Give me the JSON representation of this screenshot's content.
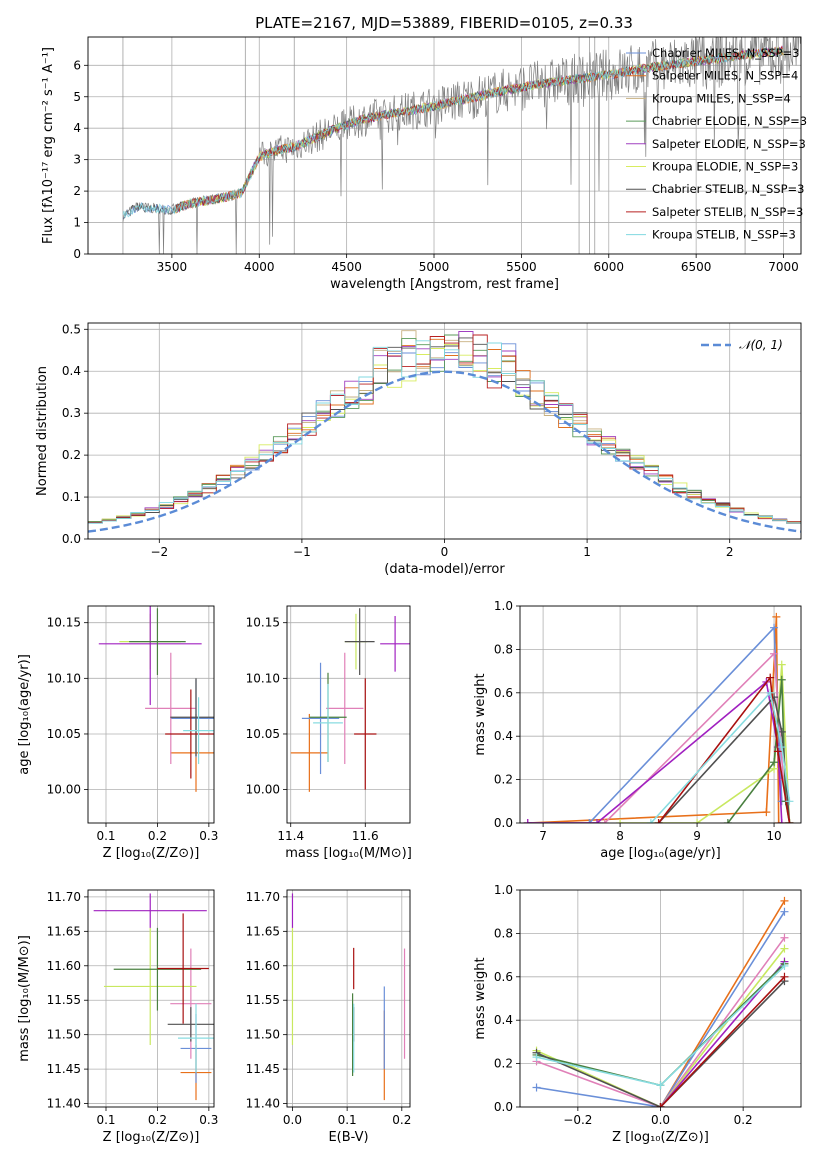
{
  "figure": {
    "title": "PLATE=2167, MJD=53889, FIBERID=0105, z=0.33"
  },
  "colors": {
    "series": [
      "#ff7f0e",
      "#ff7f0e",
      "#b07a2a",
      "#4e8a50",
      "#9b30c8",
      "#c8e05a",
      "#404040",
      "#b01010",
      "#7fdde0"
    ],
    "model": [
      "#6a8fd8",
      "#e07020",
      "#c8b080",
      "#5a9a5a",
      "#a040c0",
      "#d8ec60",
      "#505050",
      "#b82020",
      "#80d8e0"
    ],
    "errbar": [
      "#e8701a",
      "#6a8fd8",
      "#e080b8",
      "#c8e860",
      "#a020c0",
      "#4a8040",
      "#505050",
      "#a81010",
      "#88dce0"
    ],
    "gaussian": "#5b8bd6",
    "spectrum": "#808080"
  },
  "chart_data": [
    {
      "id": "spectrum",
      "type": "line",
      "title": "PLATE=2167, MJD=53889, FIBERID=0105, z=0.33",
      "xlabel": "wavelength [Angstrom, rest frame]",
      "ylabel": "Flux [fλ10⁻¹⁷ erg cm⁻² s⁻¹ A⁻¹]",
      "xlim": [
        3020,
        7100
      ],
      "ylim": [
        0,
        6.9
      ],
      "xticks": [
        3500,
        4000,
        4500,
        5000,
        5500,
        6000,
        6500,
        7000
      ],
      "yticks": [
        0,
        1,
        2,
        3,
        4,
        5,
        6
      ],
      "legend_position": "top-right",
      "legend": [
        "Chabrier MILES, N_SSP=3",
        "Salpeter MILES, N_SSP=4",
        "Kroupa MILES, N_SSP=4",
        "Chabrier ELODIE, N_SSP=3",
        "Salpeter ELODIE, N_SSP=3",
        "Kroupa ELODIE, N_SSP=3",
        "Chabrier STELIB, N_SSP=3",
        "Salpeter STELIB, N_SSP=3",
        "Kroupa STELIB, N_SSP=3"
      ],
      "continuum": {
        "x": [
          3220,
          3300,
          3400,
          3500,
          3600,
          3700,
          3800,
          3900,
          4000,
          4100,
          4200,
          4400,
          4600,
          4800,
          5000,
          5200,
          5400,
          5600,
          5800,
          6000,
          6200,
          6400,
          6600,
          6800,
          7000
        ],
        "y": [
          1.2,
          1.5,
          1.45,
          1.4,
          1.6,
          1.7,
          1.8,
          1.95,
          3.1,
          3.3,
          3.4,
          3.9,
          4.3,
          4.5,
          4.7,
          4.95,
          5.2,
          5.4,
          5.55,
          5.7,
          5.9,
          6.05,
          6.2,
          6.35,
          6.45
        ]
      },
      "model_start": [
        3220,
        3520,
        3520,
        3520,
        3520,
        3520,
        3220,
        3520,
        3220
      ]
    },
    {
      "id": "residuals",
      "type": "line",
      "xlabel": "(data-model)/error",
      "ylabel": "Normed distribution",
      "xlim": [
        -2.5,
        2.5
      ],
      "ylim": [
        0,
        0.515
      ],
      "xticks": [
        -2,
        -1,
        0,
        1,
        2
      ],
      "yticks": [
        0.0,
        0.1,
        0.2,
        0.3,
        0.4,
        0.5
      ],
      "legend_position": "top-right",
      "gaussian_label": "𝒩(0, 1)",
      "gaussian": {
        "mean": 0,
        "sigma": 1
      },
      "bin_width": 0.1
    },
    {
      "id": "age-vs-Z",
      "type": "scatter",
      "xlabel": "Z [log₁₀(Z/Z⊙)]",
      "ylabel": "age  [log₁₀(age/yr)]",
      "xlim": [
        0.065,
        0.31
      ],
      "ylim": [
        9.97,
        10.165
      ],
      "xticks": [
        0.1,
        0.2,
        0.3
      ],
      "yticks": [
        10.0,
        10.05,
        10.1,
        10.15
      ],
      "points": [
        {
          "x": 0.275,
          "y": 10.033,
          "xerr": 0.05,
          "yerr": 0.035
        },
        {
          "x": 0.275,
          "y": 10.064,
          "xerr": 0.05,
          "yerr": 0.035
        },
        {
          "x": 0.226,
          "y": 10.073,
          "xerr": 0.05,
          "yerr": 0.05
        },
        {
          "x": 0.186,
          "y": 10.133,
          "xerr": 0.06,
          "yerr": 0.025
        },
        {
          "x": 0.186,
          "y": 10.131,
          "xerr": 0.1,
          "yerr": 0.055
        },
        {
          "x": 0.2,
          "y": 10.133,
          "xerr": 0.055,
          "yerr": 0.03
        },
        {
          "x": 0.275,
          "y": 10.065,
          "xerr": 0.05,
          "yerr": 0.035
        },
        {
          "x": 0.265,
          "y": 10.05,
          "xerr": 0.05,
          "yerr": 0.04
        },
        {
          "x": 0.28,
          "y": 10.053,
          "xerr": 0.03,
          "yerr": 0.03
        }
      ]
    },
    {
      "id": "age-vs-mass",
      "type": "scatter",
      "xlabel": "mass [log₁₀(M/M⊙)]",
      "xlim": [
        11.39,
        11.72
      ],
      "ylim": [
        9.97,
        10.165
      ],
      "xticks": [
        11.4,
        11.6
      ],
      "yticks": [
        10.0,
        10.05,
        10.1,
        10.15
      ],
      "points": [
        {
          "x": 11.45,
          "y": 10.033,
          "xerr": 0.05,
          "yerr": 0.035
        },
        {
          "x": 11.48,
          "y": 10.064,
          "xerr": 0.05,
          "yerr": 0.05
        },
        {
          "x": 11.545,
          "y": 10.073,
          "xerr": 0.05,
          "yerr": 0.05
        },
        {
          "x": 11.575,
          "y": 10.133,
          "xerr": 0.03,
          "yerr": 0.025
        },
        {
          "x": 11.68,
          "y": 10.131,
          "xerr": 0.04,
          "yerr": 0.025
        },
        {
          "x": 11.5,
          "y": 10.065,
          "xerr": 0.05,
          "yerr": 0.04
        },
        {
          "x": 11.585,
          "y": 10.133,
          "xerr": 0.04,
          "yerr": 0.03
        },
        {
          "x": 11.6,
          "y": 10.05,
          "xerr": 0.03,
          "yerr": 0.05
        },
        {
          "x": 11.5,
          "y": 10.06,
          "xerr": 0.04,
          "yerr": 0.035
        }
      ]
    },
    {
      "id": "mass-weight-vs-age",
      "type": "line",
      "xlabel": "age  [log₁₀(age/yr)]",
      "ylabel": "mass weight",
      "xlim": [
        6.7,
        10.35
      ],
      "ylim": [
        0,
        1
      ],
      "xticks": [
        7,
        8,
        9,
        10
      ],
      "yticks": [
        0.0,
        0.2,
        0.4,
        0.6,
        0.8,
        1.0
      ],
      "series": [
        {
          "x": [
            6.8,
            9.9,
            10.03,
            10.06,
            10.1
          ],
          "y": [
            0,
            0.05,
            0.95,
            0.0,
            0.0
          ]
        },
        {
          "x": [
            6.8,
            7.6,
            10.0,
            10.1
          ],
          "y": [
            0,
            0.0,
            0.9,
            0.1
          ]
        },
        {
          "x": [
            6.8,
            7.8,
            10.0,
            10.12
          ],
          "y": [
            0,
            0.0,
            0.78,
            0.2
          ]
        },
        {
          "x": [
            8.0,
            9.0,
            10.0,
            10.1,
            10.2
          ],
          "y": [
            0,
            0.0,
            0.25,
            0.73,
            0.0
          ]
        },
        {
          "x": [
            6.8,
            7.7,
            9.9,
            10.05,
            10.1
          ],
          "y": [
            0,
            0.0,
            0.65,
            0.35,
            0.0
          ]
        },
        {
          "x": [
            9.4,
            10.0,
            10.1,
            10.15,
            10.2
          ],
          "y": [
            0,
            0.28,
            0.66,
            0.1,
            0.0
          ]
        },
        {
          "x": [
            8.5,
            10.0,
            10.1,
            10.2
          ],
          "y": [
            0,
            0.58,
            0.42,
            0.0
          ]
        },
        {
          "x": [
            8.5,
            9.95,
            10.05,
            10.2
          ],
          "y": [
            0,
            0.67,
            0.33,
            0.0
          ]
        },
        {
          "x": [
            8.4,
            9.95,
            10.1,
            10.2
          ],
          "y": [
            0,
            0.6,
            0.35,
            0.1
          ]
        }
      ]
    },
    {
      "id": "mass-vs-Z",
      "type": "scatter",
      "xlabel": "Z [log₁₀(Z/Z⊙)]",
      "ylabel": "mass [log₁₀(M/M⊙)]",
      "xlim": [
        0.065,
        0.31
      ],
      "ylim": [
        11.395,
        11.71
      ],
      "xticks": [
        0.1,
        0.2,
        0.3
      ],
      "yticks": [
        11.4,
        11.45,
        11.5,
        11.55,
        11.6,
        11.65,
        11.7
      ],
      "points": [
        {
          "x": 0.275,
          "y": 11.445,
          "xerr": 0.03,
          "yerr": 0.04
        },
        {
          "x": 0.275,
          "y": 11.48,
          "xerr": 0.03,
          "yerr": 0.05
        },
        {
          "x": 0.265,
          "y": 11.545,
          "xerr": 0.04,
          "yerr": 0.08
        },
        {
          "x": 0.186,
          "y": 11.57,
          "xerr": 0.09,
          "yerr": 0.085
        },
        {
          "x": 0.186,
          "y": 11.68,
          "xerr": 0.11,
          "yerr": 0.025
        },
        {
          "x": 0.2,
          "y": 11.595,
          "xerr": 0.085,
          "yerr": 0.06
        },
        {
          "x": 0.265,
          "y": 11.515,
          "xerr": 0.045,
          "yerr": 0.025
        },
        {
          "x": 0.25,
          "y": 11.596,
          "xerr": 0.05,
          "yerr": 0.08
        },
        {
          "x": 0.275,
          "y": 11.495,
          "xerr": 0.035,
          "yerr": 0.05
        }
      ]
    },
    {
      "id": "mass-vs-EBV",
      "type": "scatter",
      "xlabel": "E(B-V)",
      "xlim": [
        -0.01,
        0.215
      ],
      "ylim": [
        11.395,
        11.71
      ],
      "xticks": [
        0.0,
        0.1,
        0.2
      ],
      "yticks": [
        11.4,
        11.45,
        11.5,
        11.55,
        11.6,
        11.65,
        11.7
      ],
      "points": [
        {
          "x": 0.168,
          "y": 11.47,
          "xerr": 0,
          "yerr": 0.065
        },
        {
          "x": 0.168,
          "y": 11.51,
          "xerr": 0,
          "yerr": 0.06
        },
        {
          "x": 0.205,
          "y": 11.545,
          "xerr": 0,
          "yerr": 0.08
        },
        {
          "x": 0.0,
          "y": 11.57,
          "xerr": 0,
          "yerr": 0.085
        },
        {
          "x": 0.0,
          "y": 11.68,
          "xerr": 0,
          "yerr": 0.025
        },
        {
          "x": 0.11,
          "y": 11.5,
          "xerr": 0,
          "yerr": 0.06
        },
        {
          "x": 0.112,
          "y": 11.515,
          "xerr": 0,
          "yerr": 0.025
        },
        {
          "x": 0.112,
          "y": 11.596,
          "xerr": 0,
          "yerr": 0.03
        },
        {
          "x": 0.112,
          "y": 11.495,
          "xerr": 0,
          "yerr": 0.05
        }
      ]
    },
    {
      "id": "mass-weight-vs-Z",
      "type": "line",
      "xlabel": "Z [log₁₀(Z/Z⊙)]",
      "ylabel": "mass weight",
      "xlim": [
        -0.34,
        0.34
      ],
      "ylim": [
        0,
        1
      ],
      "xticks": [
        -0.2,
        0.0,
        0.2
      ],
      "yticks": [
        0.0,
        0.2,
        0.4,
        0.6,
        0.8,
        1.0
      ],
      "series": [
        {
          "x": [
            0.0,
            0.3
          ],
          "y": [
            0.0,
            0.95
          ]
        },
        {
          "x": [
            -0.3,
            0.0,
            0.3
          ],
          "y": [
            0.09,
            0.0,
            0.9
          ]
        },
        {
          "x": [
            -0.3,
            0.0,
            0.3
          ],
          "y": [
            0.21,
            0.0,
            0.78
          ]
        },
        {
          "x": [
            -0.3,
            0.0,
            0.3
          ],
          "y": [
            0.26,
            0.0,
            0.73
          ]
        },
        {
          "x": [
            0.0,
            0.3
          ],
          "y": [
            0.0,
            0.67
          ]
        },
        {
          "x": [
            -0.3,
            0.0,
            0.3
          ],
          "y": [
            0.24,
            0.1,
            0.66
          ]
        },
        {
          "x": [
            -0.3,
            0.0,
            0.3
          ],
          "y": [
            0.25,
            0.0,
            0.58
          ]
        },
        {
          "x": [
            0.0,
            0.3
          ],
          "y": [
            0.0,
            0.6
          ]
        },
        {
          "x": [
            -0.3,
            0.0,
            0.3
          ],
          "y": [
            0.23,
            0.1,
            0.65
          ]
        }
      ]
    }
  ]
}
